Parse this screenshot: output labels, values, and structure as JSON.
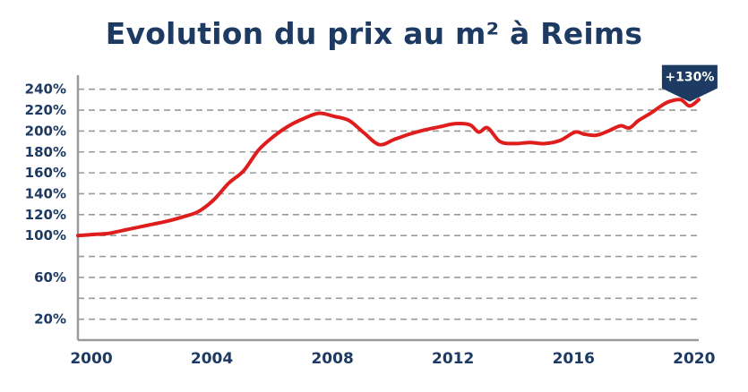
{
  "colors": {
    "title": "#1d3a63",
    "axis": "#9a9a9a",
    "grid": "#9a9a9a",
    "line": "#e01d1d",
    "badge_bg": "#1d3a63",
    "badge_text": "#ffffff"
  },
  "chart_data": {
    "type": "line",
    "title": "Evolution du prix au m² à Reims",
    "xlabel": "",
    "ylabel": "",
    "xlim": [
      2000,
      2020.6
    ],
    "ylim": [
      0,
      250
    ],
    "grid": true,
    "y_ticks": [
      {
        "value": 20,
        "label": "20%",
        "grid": true
      },
      {
        "value": 40,
        "label": "",
        "grid": true
      },
      {
        "value": 60,
        "label": "60%",
        "grid": true
      },
      {
        "value": 80,
        "label": "",
        "grid": true
      },
      {
        "value": 100,
        "label": "100%",
        "grid": true
      },
      {
        "value": 120,
        "label": "120%",
        "grid": true
      },
      {
        "value": 140,
        "label": "140%",
        "grid": true
      },
      {
        "value": 160,
        "label": "160%",
        "grid": true
      },
      {
        "value": 180,
        "label": "180%",
        "grid": true
      },
      {
        "value": 200,
        "label": "200%",
        "grid": true
      },
      {
        "value": 220,
        "label": "220%",
        "grid": true
      },
      {
        "value": 240,
        "label": "240%",
        "grid": true
      }
    ],
    "x_ticks": [
      {
        "value": 2000,
        "label": "2000"
      },
      {
        "value": 2004,
        "label": "2004"
      },
      {
        "value": 2008,
        "label": "2008"
      },
      {
        "value": 2012,
        "label": "2012"
      },
      {
        "value": 2016,
        "label": "2016"
      },
      {
        "value": 2020,
        "label": "2020"
      }
    ],
    "series": [
      {
        "x": [
          2000,
          2000.5,
          2001,
          2001.5,
          2002,
          2002.5,
          2003,
          2003.5,
          2004,
          2004.5,
          2005,
          2005.5,
          2006,
          2006.5,
          2007,
          2007.5,
          2008,
          2008.5,
          2009,
          2009.5,
          2010,
          2010.5,
          2011,
          2011.5,
          2012,
          2012.5,
          2013,
          2013.3,
          2013.6,
          2014,
          2014.5,
          2015,
          2015.5,
          2016,
          2016.5,
          2016.8,
          2017.2,
          2017.6,
          2018,
          2018.3,
          2018.6,
          2019,
          2019.3,
          2019.6,
          2020,
          2020.3,
          2020.6
        ],
        "values": [
          100,
          101,
          102,
          105,
          108,
          111,
          114,
          118,
          123,
          134,
          150,
          162,
          182,
          195,
          205,
          212,
          217,
          214,
          210,
          198,
          187,
          192,
          197,
          201,
          204,
          207,
          206,
          199,
          203,
          190,
          188,
          189,
          188,
          191,
          199,
          197,
          196,
          200,
          205,
          203,
          210,
          217,
          223,
          228,
          230,
          224,
          230
        ]
      }
    ],
    "annotations": [
      {
        "label": "+130%",
        "x": 2020.3,
        "y": 240
      }
    ]
  }
}
